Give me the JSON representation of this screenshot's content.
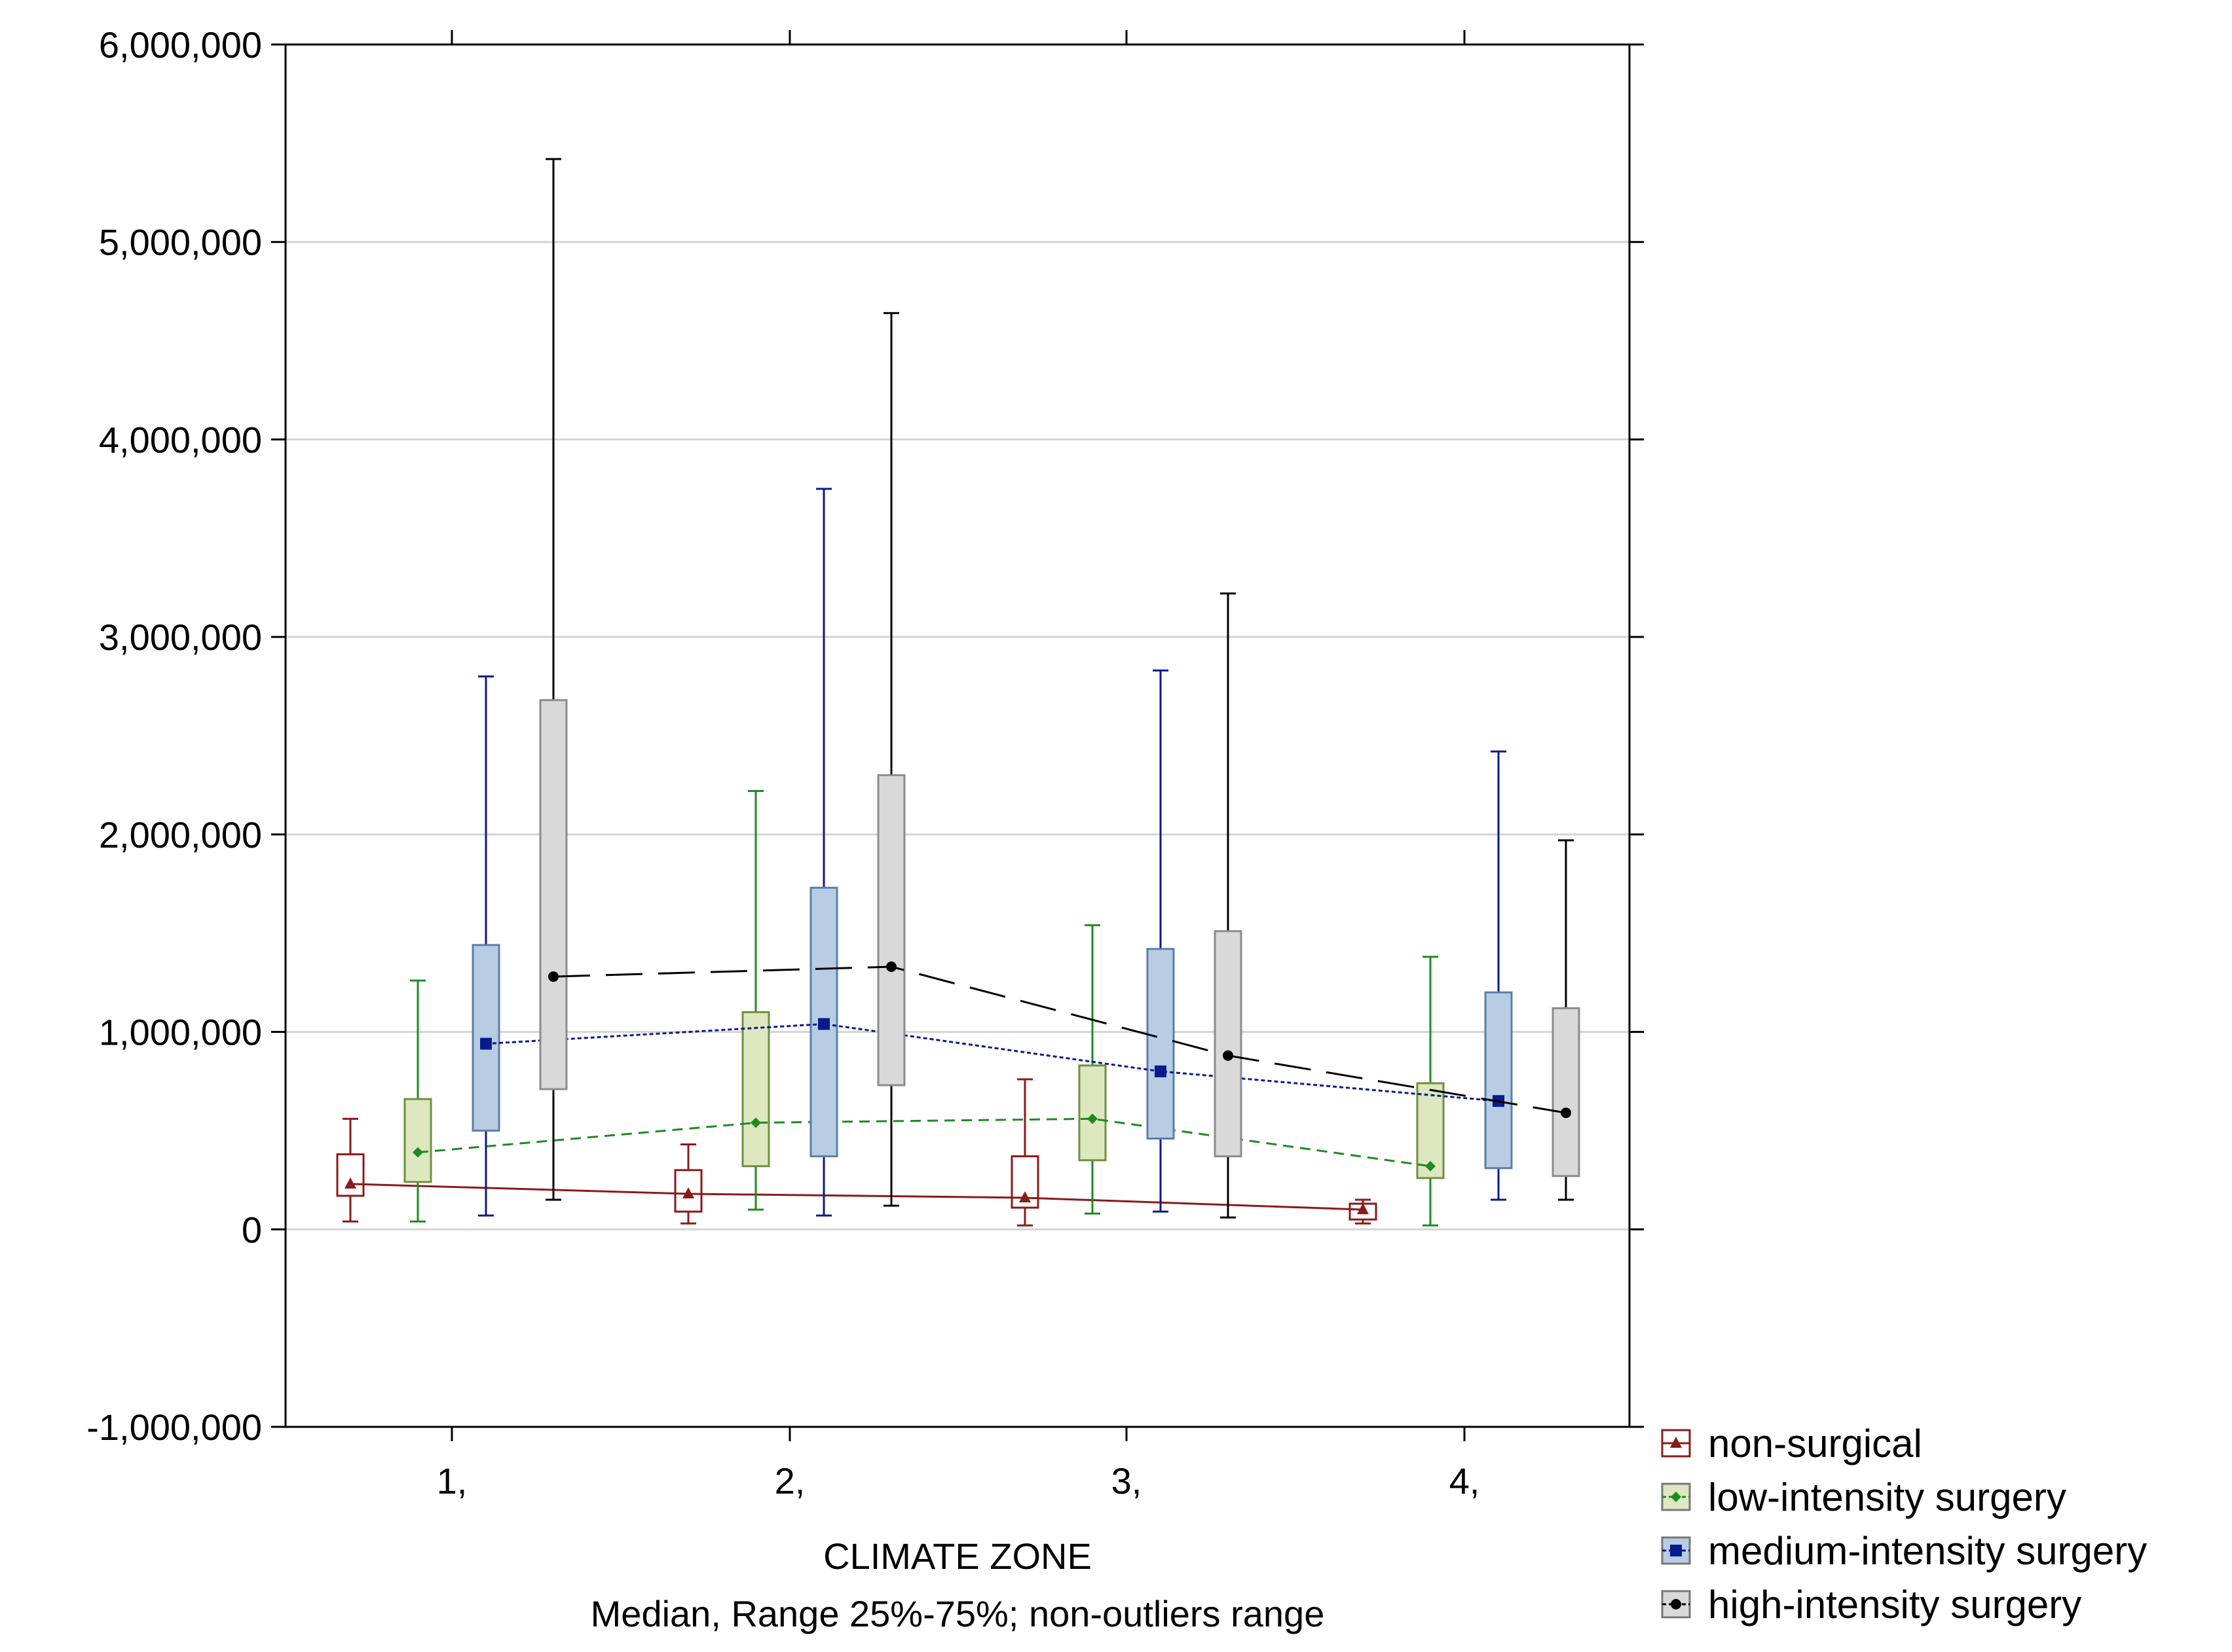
{
  "chart_data": {
    "type": "box",
    "xlabel": "CLIMATE ZONE",
    "subtitle": "Median, Range 25%-75%; non-outliers range",
    "categories": [
      "1,",
      "2,",
      "3,",
      "4,"
    ],
    "ylim": [
      -1000000,
      6000000
    ],
    "yticks": [
      -1000000,
      0,
      1000000,
      2000000,
      3000000,
      4000000,
      5000000,
      6000000
    ],
    "ytick_labels": [
      "-1,000,000",
      "0",
      "1,000,000",
      "2,000,000",
      "3,000,000",
      "4,000,000",
      "5,000,000",
      "6,000,000"
    ],
    "grid": true,
    "legend_position": "bottom-right outside",
    "series": [
      {
        "name": "non-surgical",
        "color": "#8b1a1a",
        "fill": "#ffffff",
        "marker": "triangle",
        "line": "solid",
        "median": [
          230000,
          180000,
          160000,
          100000
        ],
        "q1": [
          170000,
          90000,
          110000,
          50000
        ],
        "q3": [
          380000,
          300000,
          370000,
          130000
        ],
        "whisker_low": [
          40000,
          30000,
          20000,
          30000
        ],
        "whisker_high": [
          560000,
          430000,
          760000,
          150000
        ]
      },
      {
        "name": "low-intensity surgery",
        "color": "#1f8a1f",
        "fill": "#dde8c0",
        "marker": "diamond",
        "line": "dashed",
        "median": [
          390000,
          540000,
          560000,
          320000
        ],
        "q1": [
          240000,
          320000,
          350000,
          260000
        ],
        "q3": [
          660000,
          1100000,
          830000,
          740000
        ],
        "whisker_low": [
          40000,
          100000,
          80000,
          20000
        ],
        "whisker_high": [
          1260000,
          2220000,
          1540000,
          1380000
        ]
      },
      {
        "name": "medium-intensity surgery",
        "color": "#0a1a8c",
        "fill": "#b8cce4",
        "marker": "square",
        "line": "dotted",
        "median": [
          940000,
          1040000,
          800000,
          650000
        ],
        "q1": [
          500000,
          370000,
          460000,
          310000
        ],
        "q3": [
          1440000,
          1730000,
          1420000,
          1200000
        ],
        "whisker_low": [
          70000,
          70000,
          90000,
          150000
        ],
        "whisker_high": [
          2800000,
          3750000,
          2830000,
          2420000
        ]
      },
      {
        "name": "high-intensity surgery",
        "color": "#000000",
        "fill": "#d9d9d9",
        "marker": "circle",
        "line": "long-dash",
        "median": [
          1280000,
          1330000,
          880000,
          590000
        ],
        "q1": [
          710000,
          730000,
          370000,
          270000
        ],
        "q3": [
          2680000,
          2300000,
          1510000,
          1120000
        ],
        "whisker_low": [
          150000,
          120000,
          60000,
          150000
        ],
        "whisker_high": [
          5420000,
          4640000,
          3220000,
          1970000
        ]
      }
    ]
  }
}
